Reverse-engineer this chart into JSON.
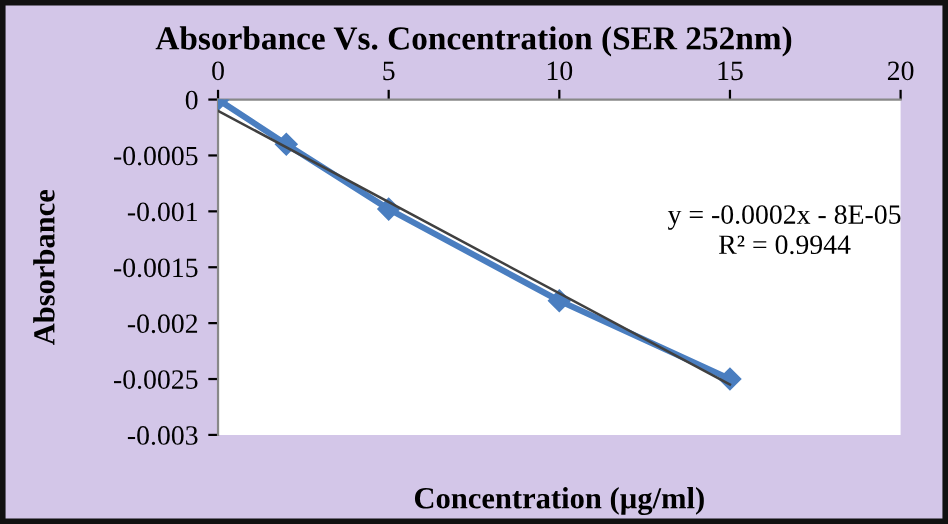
{
  "chart_data": {
    "type": "line",
    "title": "Absorbance Vs. Concentration (SER 252nm)",
    "xlabel": "Concentration (µg/ml)",
    "ylabel": "Absorbance",
    "series": [
      {
        "color": "#4a7ec0",
        "marker": "diamond",
        "x": [
          0,
          2,
          5,
          10,
          15
        ],
        "values": [
          0,
          -0.0004,
          -0.00098,
          -0.0018,
          -0.0025
        ]
      },
      {
        "color": "#404040",
        "marker": "none",
        "x": [
          0,
          15
        ],
        "values": [
          -0.0001,
          -0.00255
        ]
      }
    ],
    "annotations": [
      "y = -0.0002x - 8E-05",
      "R² = 0.9944"
    ],
    "xlim": [
      0,
      20
    ],
    "xticks": [
      0,
      5,
      10,
      15,
      20
    ],
    "ylim": [
      -0.003,
      0
    ],
    "yticks": [
      -0.003,
      -0.0025,
      -0.002,
      -0.0015,
      -0.001,
      -0.0005,
      0
    ]
  }
}
